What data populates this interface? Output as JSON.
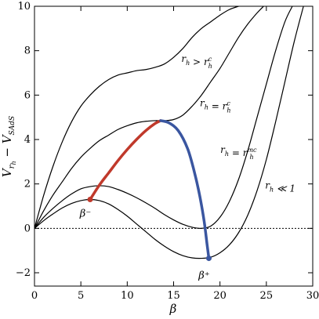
{
  "chart_data": {
    "type": "line",
    "title": "",
    "xlabel": "β",
    "ylabel": "V_{r_h} − V_{SAdS}",
    "xlim": [
      0,
      30
    ],
    "ylim": [
      -2.6,
      10
    ],
    "x_ticks": [
      0,
      5,
      10,
      15,
      20,
      25,
      30
    ],
    "y_ticks": [
      -2,
      0,
      2,
      4,
      6,
      8,
      10
    ],
    "grid": false,
    "series": [
      {
        "name": "r_h > r_h^c",
        "color": "#000000",
        "x": [
          0,
          1,
          2,
          3,
          4,
          5,
          6,
          7,
          8,
          9,
          10,
          11,
          12,
          13,
          14,
          15,
          16,
          17,
          18,
          19,
          20,
          21,
          22
        ],
        "y": [
          0,
          1.5,
          2.8,
          3.9,
          4.8,
          5.5,
          6.0,
          6.4,
          6.7,
          6.9,
          7.0,
          7.1,
          7.15,
          7.25,
          7.4,
          7.7,
          8.1,
          8.6,
          9.0,
          9.3,
          9.6,
          9.85,
          10.0
        ]
      },
      {
        "name": "r_h = r_h^c",
        "color": "#000000",
        "x": [
          0,
          1,
          2,
          3,
          4,
          5,
          6,
          7,
          8,
          9,
          10,
          11,
          12,
          13,
          14,
          15,
          16,
          17,
          18,
          19,
          20,
          21,
          22,
          23,
          24,
          24.7
        ],
        "y": [
          0,
          0.8,
          1.5,
          2.1,
          2.7,
          3.2,
          3.6,
          3.95,
          4.2,
          4.45,
          4.62,
          4.75,
          4.82,
          4.85,
          4.85,
          4.9,
          5.1,
          5.5,
          6.0,
          6.6,
          7.2,
          7.9,
          8.6,
          9.2,
          9.7,
          10.0
        ]
      },
      {
        "name": "r_h = r_h^mc",
        "color": "#000000",
        "x": [
          0,
          1,
          2,
          3,
          4,
          5,
          6,
          7,
          8,
          9,
          10,
          11,
          12,
          13,
          14,
          15,
          16,
          17,
          18,
          19,
          20,
          21,
          22,
          23,
          24,
          25,
          26,
          27,
          27.8
        ],
        "y": [
          0,
          0.5,
          0.9,
          1.25,
          1.55,
          1.78,
          1.88,
          1.92,
          1.88,
          1.75,
          1.58,
          1.38,
          1.15,
          0.9,
          0.62,
          0.38,
          0.18,
          0.05,
          0.0,
          0.1,
          0.5,
          1.2,
          2.2,
          3.5,
          5.0,
          6.5,
          8.0,
          9.3,
          10.0
        ]
      },
      {
        "name": "r_h ≪ 1",
        "color": "#000000",
        "x": [
          0,
          1,
          2,
          3,
          4,
          5,
          6,
          7,
          8,
          9,
          10,
          11,
          12,
          13,
          14,
          15,
          16,
          17,
          18,
          19,
          20,
          21,
          22,
          23,
          24,
          25,
          26,
          27,
          28,
          29
        ],
        "y": [
          0,
          0.35,
          0.65,
          0.92,
          1.12,
          1.25,
          1.3,
          1.25,
          1.1,
          0.85,
          0.55,
          0.2,
          -0.15,
          -0.5,
          -0.8,
          -1.05,
          -1.23,
          -1.33,
          -1.35,
          -1.3,
          -1.1,
          -0.75,
          -0.2,
          0.6,
          1.7,
          3.1,
          4.8,
          6.6,
          8.4,
          10.0
        ]
      },
      {
        "name": "",
        "color": "#C0392B",
        "x": [
          6.0,
          7.0,
          8.0,
          9.0,
          10.0,
          11.0,
          12.0,
          13.0,
          13.6
        ],
        "y": [
          1.3,
          1.95,
          2.5,
          3.05,
          3.55,
          4.0,
          4.4,
          4.72,
          4.85
        ]
      },
      {
        "name": "",
        "color": "#3A56A0",
        "x": [
          13.6,
          14.5,
          15.5,
          16.5,
          17.2,
          17.8,
          18.3,
          18.6,
          18.8
        ],
        "y": [
          4.85,
          4.75,
          4.4,
          3.6,
          2.6,
          1.5,
          0.3,
          -0.7,
          -1.35
        ]
      }
    ],
    "reference_line": {
      "y": 0,
      "style": "dotted"
    },
    "points": [
      {
        "label": "β⁻",
        "x": 6.0,
        "y": 1.3,
        "color": "#C0392B"
      },
      {
        "label": "β⁺",
        "x": 18.8,
        "y": -1.35,
        "color": "#3A56A0"
      }
    ],
    "curve_labels": [
      {
        "text": "r_h > r_h^c",
        "x": 17.5,
        "y": 7.5
      },
      {
        "text": "r_h = r_h^c",
        "x": 19.5,
        "y": 5.5
      },
      {
        "text": "r_h = r_h^mc",
        "x": 22.0,
        "y": 3.4
      },
      {
        "text": "r_h ≪ 1",
        "x": 26.5,
        "y": 1.8
      }
    ]
  }
}
